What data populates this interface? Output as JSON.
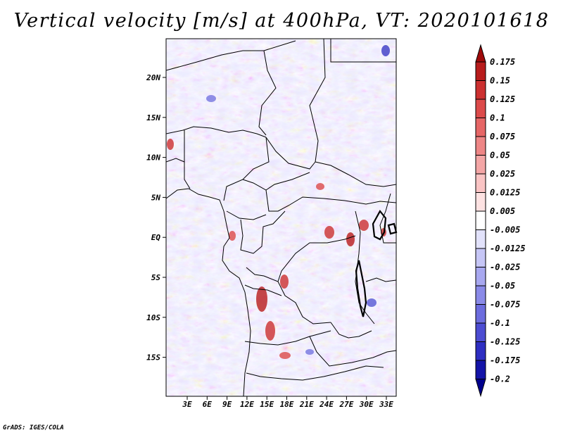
{
  "title": "Vertical velocity [m/s] at 400hPa, VT: 2020101618",
  "credit": "GrADS: IGES/COLA",
  "map": {
    "lat_labels": [
      "20N",
      "15N",
      "10N",
      "5N",
      "EQ",
      "5S",
      "10S",
      "15S"
    ],
    "lon_labels": [
      "3E",
      "6E",
      "9E",
      "12E",
      "15E",
      "18E",
      "21E",
      "24E",
      "27E",
      "30E",
      "33E"
    ]
  },
  "colorbar": {
    "labels": [
      "0.175",
      "0.15",
      "0.125",
      "0.1",
      "0.075",
      "0.05",
      "0.025",
      "0.0125",
      "0.005",
      "-0.005",
      "-0.0125",
      "-0.025",
      "-0.05",
      "-0.075",
      "-0.1",
      "-0.125",
      "-0.175",
      "-0.2"
    ],
    "colors": [
      "#9e0a0a",
      "#b81c1c",
      "#cc3030",
      "#dc4a4a",
      "#e66666",
      "#ee8686",
      "#f4a6a6",
      "#fac4c4",
      "#fde2e2",
      "#ffffff",
      "#e2e2fb",
      "#c6c6f6",
      "#a8a8f0",
      "#8a8ae8",
      "#6c6cde",
      "#4c4cd2",
      "#2e2ec2",
      "#1414a8",
      "#00008c"
    ]
  }
}
